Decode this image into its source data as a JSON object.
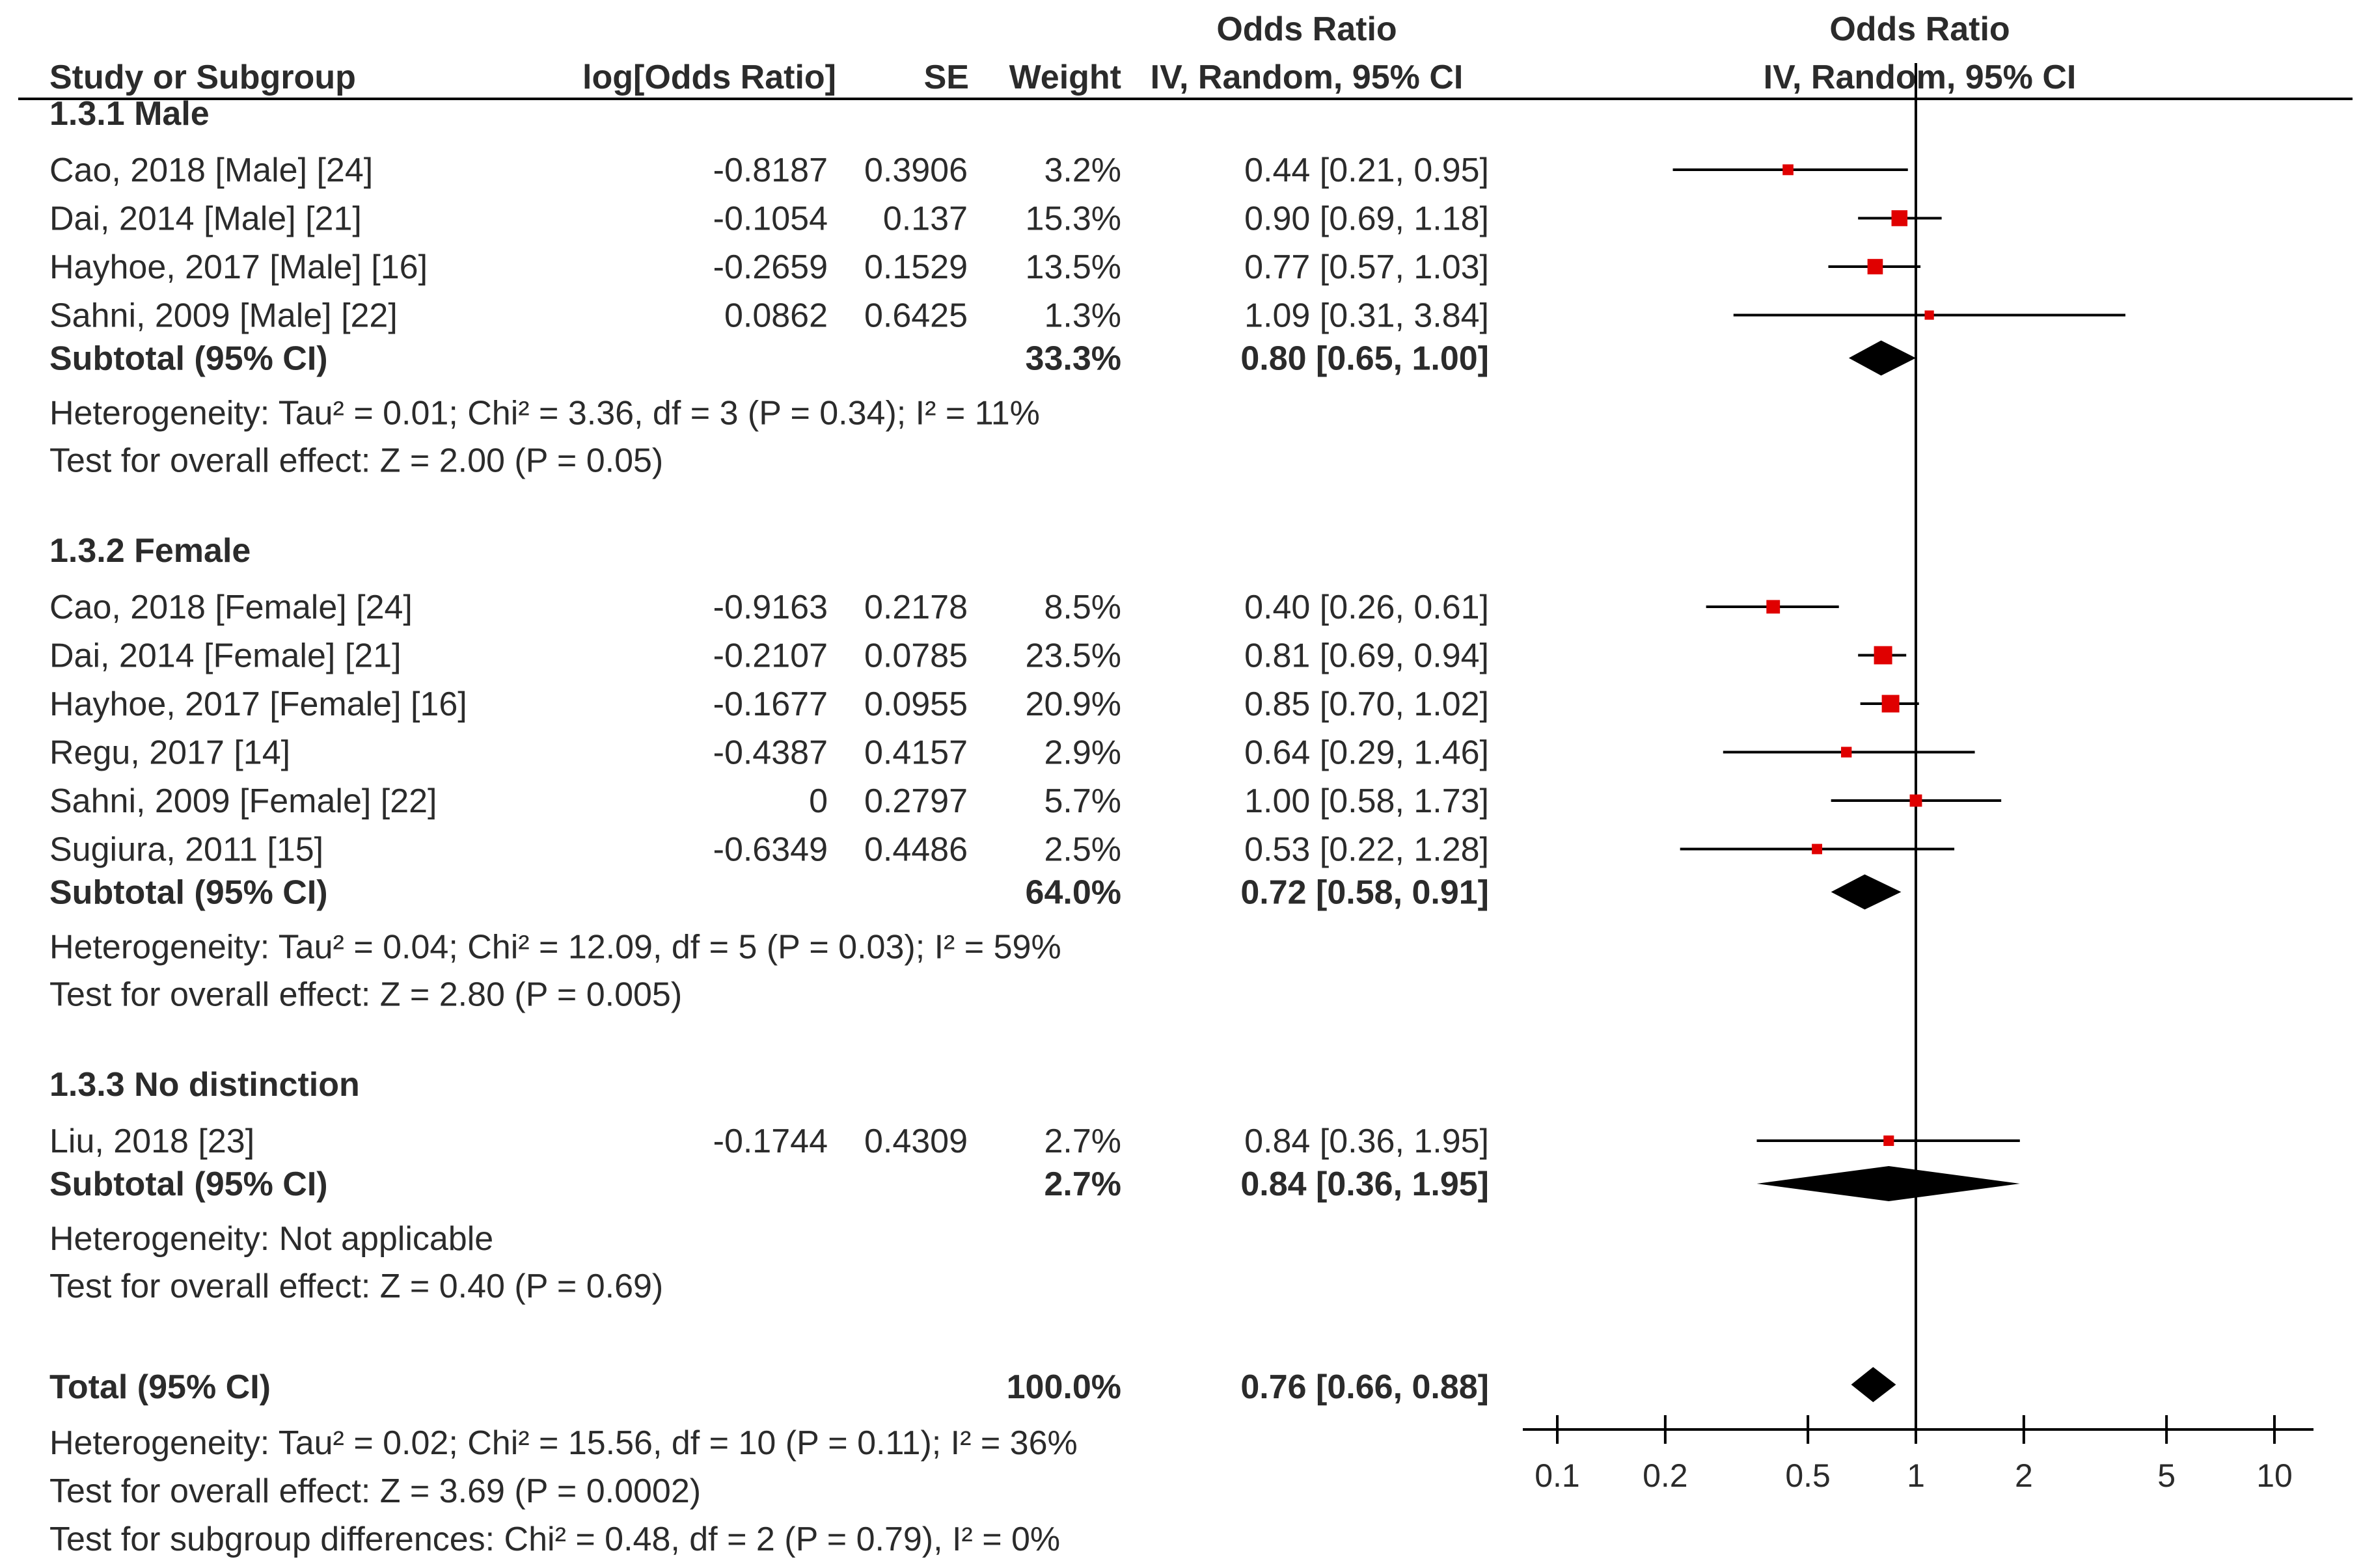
{
  "chart_data": {
    "type": "forest",
    "headers": {
      "study": "Study or Subgroup",
      "log_or": "log[Odds Ratio]",
      "se": "SE",
      "weight": "Weight",
      "or_top": "Odds Ratio",
      "or_bottom": "IV, Random, 95% CI",
      "plot_top": "Odds Ratio",
      "plot_bottom": "IV, Random, 95% CI"
    },
    "x_axis": {
      "scale": "log",
      "range": [
        0.1,
        10
      ],
      "ticks": [
        0.1,
        0.2,
        0.5,
        1,
        2,
        5,
        10
      ],
      "tick_labels": [
        "0.1",
        "0.2",
        "0.5",
        "1",
        "2",
        "5",
        "10"
      ],
      "null_line": 1
    },
    "colors": {
      "marker": "#e00000",
      "diamond": "#000000",
      "line": "#000000",
      "text": "#2b2b2b"
    },
    "groups": [
      {
        "title": "1.3.1 Male",
        "studies": [
          {
            "name": "Cao, 2018 [Male] [24]",
            "log_or": "-0.8187",
            "se": "0.3906",
            "weight": "3.2%",
            "ci_text": "0.44 [0.21, 0.95]",
            "or": 0.44,
            "lower": 0.21,
            "upper": 0.95,
            "w": 3.2
          },
          {
            "name": "Dai, 2014 [Male] [21]",
            "log_or": "-0.1054",
            "se": "0.137",
            "weight": "15.3%",
            "ci_text": "0.90 [0.69, 1.18]",
            "or": 0.9,
            "lower": 0.69,
            "upper": 1.18,
            "w": 15.3
          },
          {
            "name": "Hayhoe, 2017 [Male] [16]",
            "log_or": "-0.2659",
            "se": "0.1529",
            "weight": "13.5%",
            "ci_text": "0.77 [0.57, 1.03]",
            "or": 0.77,
            "lower": 0.57,
            "upper": 1.03,
            "w": 13.5
          },
          {
            "name": "Sahni, 2009 [Male] [22]",
            "log_or": "0.0862",
            "se": "0.6425",
            "weight": "1.3%",
            "ci_text": "1.09 [0.31, 3.84]",
            "or": 1.09,
            "lower": 0.31,
            "upper": 3.84,
            "w": 1.3
          }
        ],
        "subtotal": {
          "label": "Subtotal (95% CI)",
          "weight": "33.3%",
          "ci_text": "0.80 [0.65, 1.00]",
          "or": 0.8,
          "lower": 0.65,
          "upper": 1.0
        },
        "heterogeneity": "Heterogeneity: Tau² = 0.01; Chi² = 3.36, df = 3 (P = 0.34); I² = 11%",
        "overall": "Test for overall effect: Z = 2.00 (P = 0.05)"
      },
      {
        "title": "1.3.2 Female",
        "studies": [
          {
            "name": "Cao, 2018 [Female] [24]",
            "log_or": "-0.9163",
            "se": "0.2178",
            "weight": "8.5%",
            "ci_text": "0.40 [0.26, 0.61]",
            "or": 0.4,
            "lower": 0.26,
            "upper": 0.61,
            "w": 8.5
          },
          {
            "name": "Dai, 2014 [Female] [21]",
            "log_or": "-0.2107",
            "se": "0.0785",
            "weight": "23.5%",
            "ci_text": "0.81 [0.69, 0.94]",
            "or": 0.81,
            "lower": 0.69,
            "upper": 0.94,
            "w": 23.5
          },
          {
            "name": "Hayhoe, 2017 [Female] [16]",
            "log_or": "-0.1677",
            "se": "0.0955",
            "weight": "20.9%",
            "ci_text": "0.85 [0.70, 1.02]",
            "or": 0.85,
            "lower": 0.7,
            "upper": 1.02,
            "w": 20.9
          },
          {
            "name": "Regu, 2017 [14]",
            "log_or": "-0.4387",
            "se": "0.4157",
            "weight": "2.9%",
            "ci_text": "0.64 [0.29, 1.46]",
            "or": 0.64,
            "lower": 0.29,
            "upper": 1.46,
            "w": 2.9
          },
          {
            "name": "Sahni, 2009 [Female] [22]",
            "log_or": "0",
            "se": "0.2797",
            "weight": "5.7%",
            "ci_text": "1.00 [0.58, 1.73]",
            "or": 1.0,
            "lower": 0.58,
            "upper": 1.73,
            "w": 5.7
          },
          {
            "name": "Sugiura, 2011 [15]",
            "log_or": "-0.6349",
            "se": "0.4486",
            "weight": "2.5%",
            "ci_text": "0.53 [0.22, 1.28]",
            "or": 0.53,
            "lower": 0.22,
            "upper": 1.28,
            "w": 2.5
          }
        ],
        "subtotal": {
          "label": "Subtotal (95% CI)",
          "weight": "64.0%",
          "ci_text": "0.72 [0.58, 0.91]",
          "or": 0.72,
          "lower": 0.58,
          "upper": 0.91
        },
        "heterogeneity": "Heterogeneity: Tau² = 0.04; Chi² = 12.09, df = 5 (P = 0.03); I² = 59%",
        "overall": "Test for overall effect: Z = 2.80 (P = 0.005)"
      },
      {
        "title": "1.3.3 No distinction",
        "studies": [
          {
            "name": "Liu, 2018 [23]",
            "log_or": "-0.1744",
            "se": "0.4309",
            "weight": "2.7%",
            "ci_text": "0.84 [0.36, 1.95]",
            "or": 0.84,
            "lower": 0.36,
            "upper": 1.95,
            "w": 2.7
          }
        ],
        "subtotal": {
          "label": "Subtotal (95% CI)",
          "weight": "2.7%",
          "ci_text": "0.84 [0.36, 1.95]",
          "or": 0.84,
          "lower": 0.36,
          "upper": 1.95
        },
        "heterogeneity": "Heterogeneity: Not applicable",
        "overall": "Test for overall effect: Z = 0.40 (P = 0.69)"
      }
    ],
    "total": {
      "label": "Total (95% CI)",
      "weight": "100.0%",
      "ci_text": "0.76 [0.66, 0.88]",
      "or": 0.76,
      "lower": 0.66,
      "upper": 0.88,
      "heterogeneity": "Heterogeneity: Tau² = 0.02; Chi² = 15.56, df = 10 (P = 0.11); I² = 36%",
      "overall": "Test for overall effect: Z = 3.69 (P = 0.0002)",
      "subgroup": "Test for subgroup differences: Chi² = 0.48, df = 2 (P = 0.79), I² = 0%"
    }
  }
}
